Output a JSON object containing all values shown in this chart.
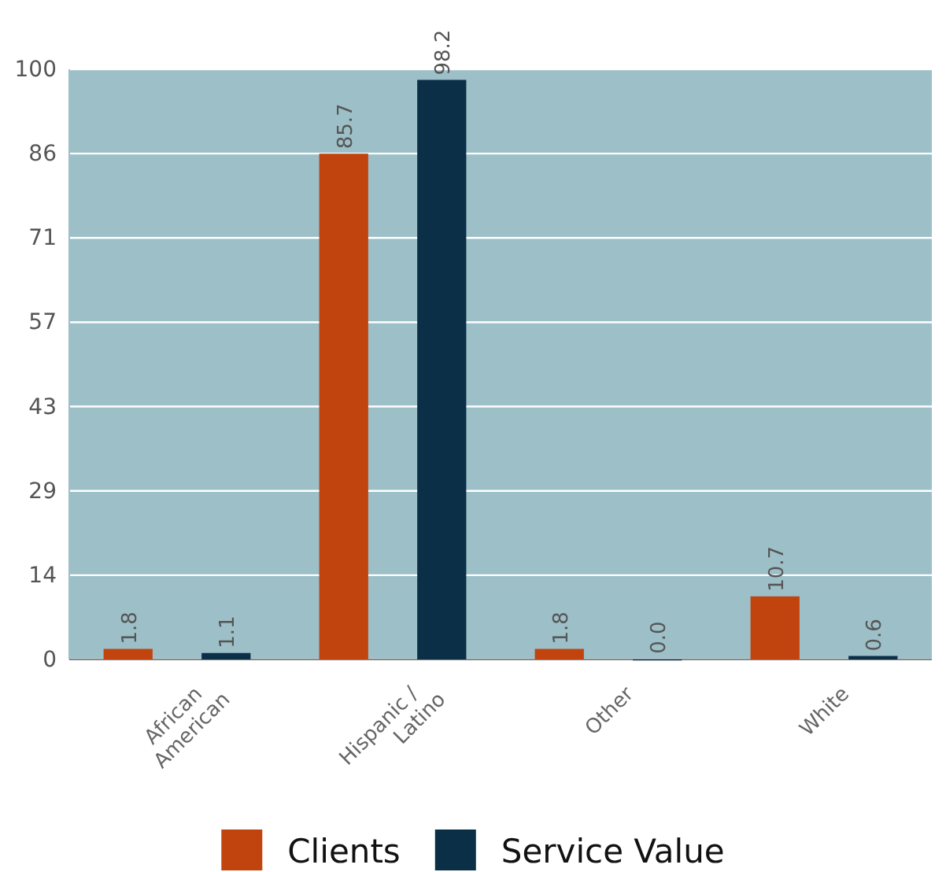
{
  "chart_data": {
    "type": "bar",
    "categories": [
      "African American",
      "Hispanic / Latino",
      "Other",
      "White"
    ],
    "series": [
      {
        "name": "Clients",
        "color": "#c1440e",
        "values": [
          1.8,
          85.7,
          1.8,
          10.7
        ],
        "value_labels": [
          "1.8",
          "85.7",
          "1.8",
          "10.7"
        ]
      },
      {
        "name": "Service Value",
        "color": "#0b2f47",
        "values": [
          1.1,
          98.2,
          0,
          0.6
        ],
        "value_labels": [
          "1.1",
          "98.2",
          "0.0",
          "0.6"
        ]
      }
    ],
    "ylim": [
      0,
      100
    ],
    "yticks": [
      0,
      {
        "value": 14.2857,
        "label": "14"
      },
      {
        "value": 28.5714,
        "label": "29"
      },
      {
        "value": 42.8571,
        "label": "43"
      },
      {
        "value": 57.1429,
        "label": "57"
      },
      {
        "value": 71.4286,
        "label": "71"
      },
      {
        "value": 85.7143,
        "label": "86"
      },
      100
    ],
    "grid": "y",
    "legend": "bottom"
  }
}
